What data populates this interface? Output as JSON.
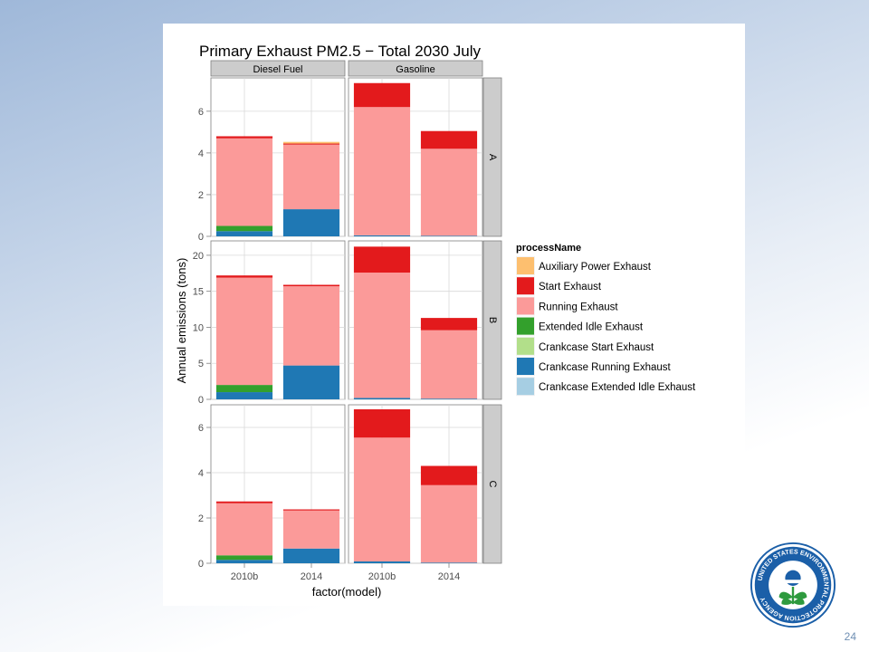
{
  "slide": {
    "page_number": "24"
  },
  "logo": {
    "text": "UNITED STATES ENVIRONMENTAL PROTECTION AGENCY"
  },
  "chart_data": {
    "type": "bar",
    "stacked": true,
    "title": "Primary Exhaust PM2.5 − Total 2030 July",
    "xlabel": "factor(model)",
    "ylabel": "Annual emissions (tons)",
    "legend_title": "processName",
    "legend_position": "right",
    "grid": true,
    "column_facets": [
      "Diesel Fuel",
      "Gasoline"
    ],
    "row_facets": [
      "A",
      "B",
      "C"
    ],
    "categories": [
      "2010b",
      "2014"
    ],
    "processes": [
      {
        "name": "Auxiliary Power Exhaust",
        "color": "#fdbf6f"
      },
      {
        "name": "Start Exhaust",
        "color": "#e31a1c"
      },
      {
        "name": "Running Exhaust",
        "color": "#fb9a99"
      },
      {
        "name": "Extended Idle Exhaust",
        "color": "#33a02c"
      },
      {
        "name": "Crankcase Start Exhaust",
        "color": "#b2df8a"
      },
      {
        "name": "Crankcase Running Exhaust",
        "color": "#1f78b4"
      },
      {
        "name": "Crankcase Extended Idle Exhaust",
        "color": "#a6cee3"
      }
    ],
    "stack_order": [
      "Crankcase Extended Idle Exhaust",
      "Crankcase Running Exhaust",
      "Crankcase Start Exhaust",
      "Extended Idle Exhaust",
      "Running Exhaust",
      "Start Exhaust",
      "Auxiliary Power Exhaust"
    ],
    "rows": [
      {
        "facet": "A",
        "ylim": [
          0,
          7.6
        ],
        "ticks": [
          0,
          2,
          4,
          6
        ],
        "tick_labels": [
          "0",
          "2",
          "4",
          "6"
        ],
        "panels": [
          {
            "column": "Diesel Fuel",
            "bars": [
              {
                "category": "2010b",
                "values": {
                  "Crankcase Running Exhaust": 0.25,
                  "Extended Idle Exhaust": 0.25,
                  "Running Exhaust": 4.2,
                  "Start Exhaust": 0.1
                }
              },
              {
                "category": "2014",
                "values": {
                  "Crankcase Running Exhaust": 1.3,
                  "Running Exhaust": 3.1,
                  "Start Exhaust": 0.05,
                  "Auxiliary Power Exhaust": 0.08
                }
              }
            ]
          },
          {
            "column": "Gasoline",
            "bars": [
              {
                "category": "2010b",
                "values": {
                  "Crankcase Running Exhaust": 0.05,
                  "Running Exhaust": 6.15,
                  "Start Exhaust": 1.15
                }
              },
              {
                "category": "2014",
                "values": {
                  "Crankcase Running Exhaust": 0.03,
                  "Running Exhaust": 4.17,
                  "Start Exhaust": 0.85
                }
              }
            ]
          }
        ]
      },
      {
        "facet": "B",
        "ylim": [
          0,
          22
        ],
        "ticks": [
          0,
          5,
          10,
          15,
          20
        ],
        "tick_labels": [
          "0",
          "5",
          "10",
          "15",
          "20"
        ],
        "panels": [
          {
            "column": "Diesel Fuel",
            "bars": [
              {
                "category": "2010b",
                "values": {
                  "Crankcase Running Exhaust": 1.0,
                  "Extended Idle Exhaust": 1.0,
                  "Running Exhaust": 14.9,
                  "Start Exhaust": 0.3
                }
              },
              {
                "category": "2014",
                "values": {
                  "Crankcase Running Exhaust": 4.7,
                  "Running Exhaust": 11.0,
                  "Start Exhaust": 0.2
                }
              }
            ]
          },
          {
            "column": "Gasoline",
            "bars": [
              {
                "category": "2010b",
                "values": {
                  "Crankcase Running Exhaust": 0.2,
                  "Running Exhaust": 17.4,
                  "Start Exhaust": 3.6
                }
              },
              {
                "category": "2014",
                "values": {
                  "Crankcase Running Exhaust": 0.1,
                  "Running Exhaust": 9.5,
                  "Start Exhaust": 1.7
                }
              }
            ]
          }
        ]
      },
      {
        "facet": "C",
        "ylim": [
          0,
          7.0
        ],
        "ticks": [
          0,
          2,
          4,
          6
        ],
        "tick_labels": [
          "0",
          "2",
          "4",
          "6"
        ],
        "panels": [
          {
            "column": "Diesel Fuel",
            "bars": [
              {
                "category": "2010b",
                "values": {
                  "Crankcase Running Exhaust": 0.15,
                  "Extended Idle Exhaust": 0.2,
                  "Running Exhaust": 2.3,
                  "Start Exhaust": 0.08
                }
              },
              {
                "category": "2014",
                "values": {
                  "Crankcase Running Exhaust": 0.65,
                  "Running Exhaust": 1.68,
                  "Start Exhaust": 0.05
                }
              }
            ]
          },
          {
            "column": "Gasoline",
            "bars": [
              {
                "category": "2010b",
                "values": {
                  "Crankcase Running Exhaust": 0.08,
                  "Running Exhaust": 5.47,
                  "Start Exhaust": 1.25
                }
              },
              {
                "category": "2014",
                "values": {
                  "Crankcase Running Exhaust": 0.03,
                  "Running Exhaust": 3.42,
                  "Start Exhaust": 0.85
                }
              }
            ]
          }
        ]
      }
    ]
  }
}
